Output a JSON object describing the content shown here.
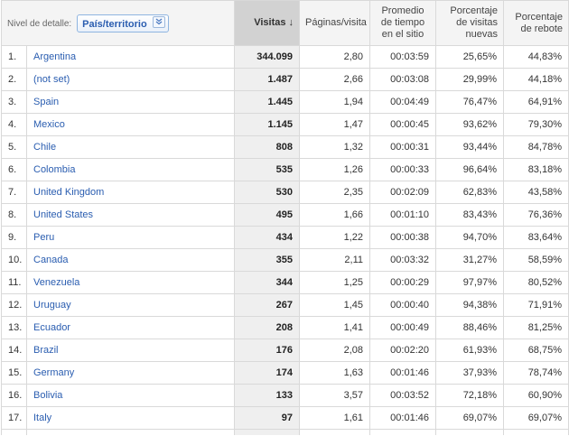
{
  "header": {
    "detail_label": "Nivel de detalle:",
    "dimension": "País/territorio",
    "dimension_icon": "chevron-down-icon",
    "columns": {
      "visits": "Visitas",
      "pages_per_visit": "Páginas/visita",
      "avg_time": "Promedio de tiempo en el sitio",
      "new_visits": "Porcentaje de visitas nuevas",
      "bounce_rate": "Porcentaje de rebote"
    },
    "sort_icon": "arrow-down-icon"
  },
  "rows": [
    {
      "index": "1.",
      "country": "Argentina",
      "visits": "344.099",
      "pages": "2,80",
      "time": "00:03:59",
      "new": "25,65%",
      "bounce": "44,83%"
    },
    {
      "index": "2.",
      "country": "(not set)",
      "visits": "1.487",
      "pages": "2,66",
      "time": "00:03:08",
      "new": "29,99%",
      "bounce": "44,18%"
    },
    {
      "index": "3.",
      "country": "Spain",
      "visits": "1.445",
      "pages": "1,94",
      "time": "00:04:49",
      "new": "76,47%",
      "bounce": "64,91%"
    },
    {
      "index": "4.",
      "country": "Mexico",
      "visits": "1.145",
      "pages": "1,47",
      "time": "00:00:45",
      "new": "93,62%",
      "bounce": "79,30%"
    },
    {
      "index": "5.",
      "country": "Chile",
      "visits": "808",
      "pages": "1,32",
      "time": "00:00:31",
      "new": "93,44%",
      "bounce": "84,78%"
    },
    {
      "index": "6.",
      "country": "Colombia",
      "visits": "535",
      "pages": "1,26",
      "time": "00:00:33",
      "new": "96,64%",
      "bounce": "83,18%"
    },
    {
      "index": "7.",
      "country": "United Kingdom",
      "visits": "530",
      "pages": "2,35",
      "time": "00:02:09",
      "new": "62,83%",
      "bounce": "43,58%"
    },
    {
      "index": "8.",
      "country": "United States",
      "visits": "495",
      "pages": "1,66",
      "time": "00:01:10",
      "new": "83,43%",
      "bounce": "76,36%"
    },
    {
      "index": "9.",
      "country": "Peru",
      "visits": "434",
      "pages": "1,22",
      "time": "00:00:38",
      "new": "94,70%",
      "bounce": "83,64%"
    },
    {
      "index": "10.",
      "country": "Canada",
      "visits": "355",
      "pages": "2,11",
      "time": "00:03:32",
      "new": "31,27%",
      "bounce": "58,59%"
    },
    {
      "index": "11.",
      "country": "Venezuela",
      "visits": "344",
      "pages": "1,25",
      "time": "00:00:29",
      "new": "97,97%",
      "bounce": "80,52%"
    },
    {
      "index": "12.",
      "country": "Uruguay",
      "visits": "267",
      "pages": "1,45",
      "time": "00:00:40",
      "new": "94,38%",
      "bounce": "71,91%"
    },
    {
      "index": "13.",
      "country": "Ecuador",
      "visits": "208",
      "pages": "1,41",
      "time": "00:00:49",
      "new": "88,46%",
      "bounce": "81,25%"
    },
    {
      "index": "14.",
      "country": "Brazil",
      "visits": "176",
      "pages": "2,08",
      "time": "00:02:20",
      "new": "61,93%",
      "bounce": "68,75%"
    },
    {
      "index": "15.",
      "country": "Germany",
      "visits": "174",
      "pages": "1,63",
      "time": "00:01:46",
      "new": "37,93%",
      "bounce": "78,74%"
    },
    {
      "index": "16.",
      "country": "Bolivia",
      "visits": "133",
      "pages": "3,57",
      "time": "00:03:52",
      "new": "72,18%",
      "bounce": "60,90%"
    },
    {
      "index": "17.",
      "country": "Italy",
      "visits": "97",
      "pages": "1,61",
      "time": "00:01:46",
      "new": "69,07%",
      "bounce": "69,07%"
    }
  ],
  "colors": {
    "link": "#2a5db0",
    "sorted_header_bg": "#d2d2d2",
    "sorted_column_bg": "#efefef",
    "grid": "#d9d9d9"
  }
}
